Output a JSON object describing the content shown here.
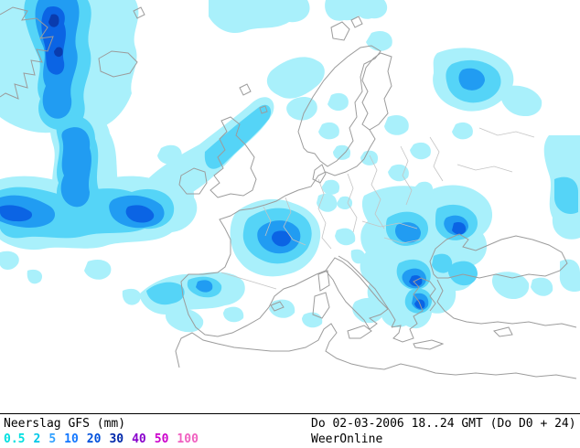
{
  "footer": {
    "product_label": "Neerslag GFS (mm)",
    "datetime_label": "Do 02-03-2006 18..24 GMT (Do D0 + 24)",
    "source_label": "WeerOnline",
    "legend": {
      "values": [
        "0.5",
        "2",
        "5",
        "10",
        "20",
        "30",
        "40",
        "50",
        "100"
      ],
      "colors": [
        "#00e0e0",
        "#00c8e8",
        "#30a0ff",
        "#1478ff",
        "#0050dc",
        "#0028aa",
        "#8800cc",
        "#cc00cc",
        "#f060c0"
      ]
    }
  },
  "map_colors": {
    "background": "#ffffff",
    "coastline": "#9c9c9c",
    "border": "#c4c4c4",
    "precip_light": "#a9f0fb",
    "precip_medium": "#55d4f7",
    "precip_blue": "#219cf2",
    "precip_dark": "#0b64e4",
    "precip_navy": "#0a3cae"
  }
}
